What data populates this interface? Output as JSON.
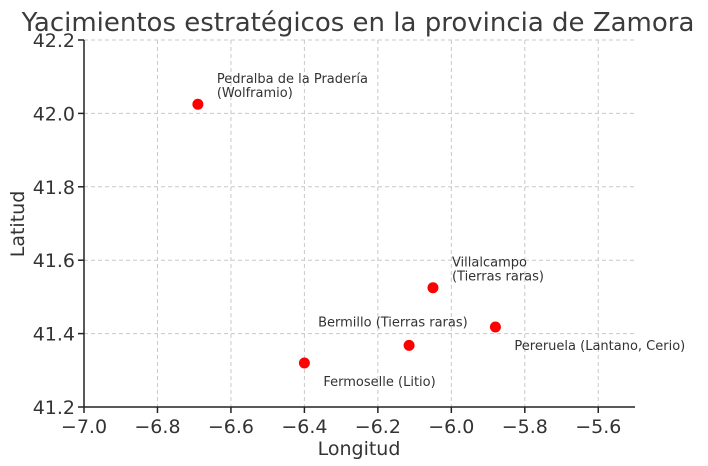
{
  "chart_data": {
    "type": "scatter",
    "title": "Yacimientos estratégicos en la provincia de Zamora",
    "xlabel": "Longitud",
    "ylabel": "Latitud",
    "xlim": [
      -7.0,
      -5.5
    ],
    "ylim": [
      41.2,
      42.2
    ],
    "xticks": [
      -7.0,
      -6.8,
      -6.6,
      -6.4,
      -6.2,
      -6.0,
      -5.8,
      -5.6
    ],
    "xtick_labels": [
      "−7.0",
      "−6.8",
      "−6.6",
      "−6.4",
      "−6.2",
      "−6.0",
      "−5.8",
      "−5.6"
    ],
    "yticks": [
      41.2,
      41.4,
      41.6,
      41.8,
      42.0,
      42.2
    ],
    "ytick_labels": [
      "41.2",
      "41.4",
      "41.6",
      "41.8",
      "42.0",
      "42.2"
    ],
    "grid": true,
    "marker_color": "#ff0000",
    "points": [
      {
        "x": -6.69,
        "y": 42.025,
        "lines": [
          "Pedralba de la Pradería",
          "(Wolframio)"
        ],
        "label_pos": "upper-right"
      },
      {
        "x": -6.05,
        "y": 41.525,
        "lines": [
          "Villalcampo",
          "(Tierras raras)"
        ],
        "label_pos": "upper-right"
      },
      {
        "x": -5.88,
        "y": 41.418,
        "lines": [
          "Pereruela (Lantano, Cerio)"
        ],
        "label_pos": "lower-right"
      },
      {
        "x": -6.115,
        "y": 41.368,
        "lines": [
          "Bermillo (Tierras raras)"
        ],
        "label_pos": "upper-left"
      },
      {
        "x": -6.4,
        "y": 41.32,
        "lines": [
          "Fermoselle (Litio)"
        ],
        "label_pos": "lower-right"
      }
    ]
  }
}
